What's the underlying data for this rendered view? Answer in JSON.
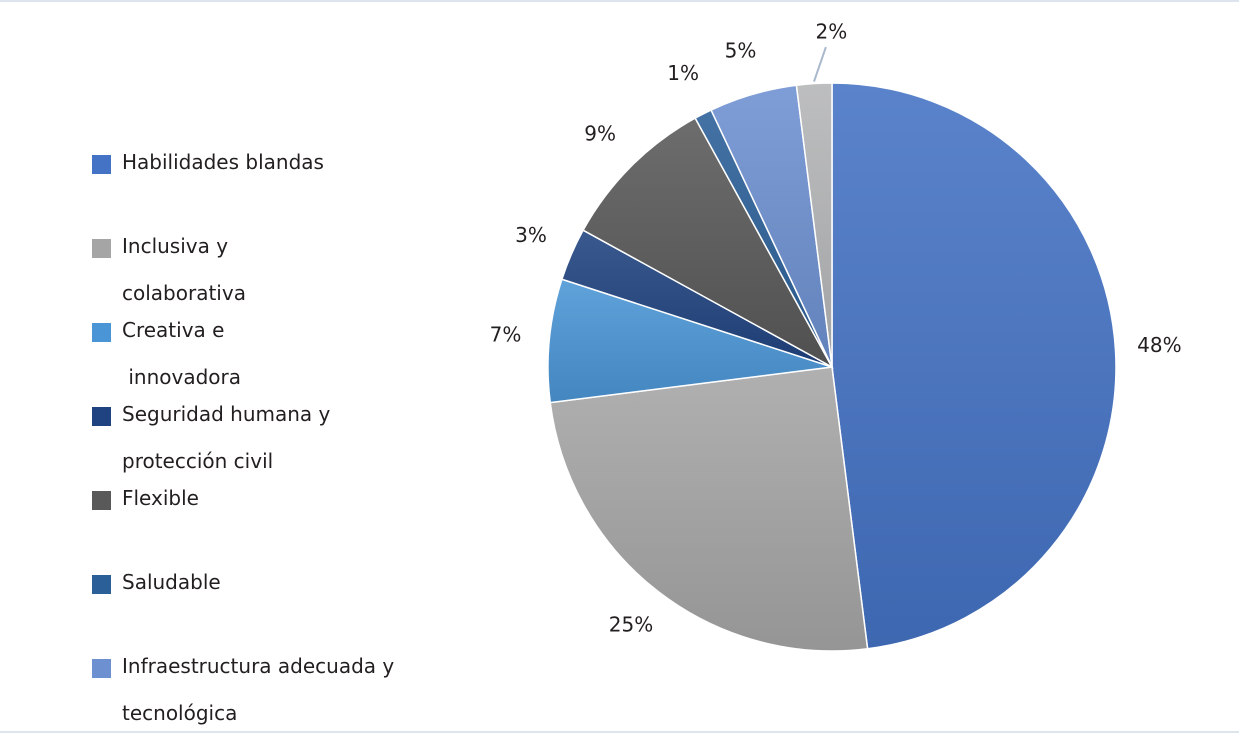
{
  "chart_data": {
    "type": "pie",
    "categories": [
      "Habilidades blandas",
      "Inclusiva y colaborativa",
      "Creativa e innovadora",
      "Seguridad humana y protección civil",
      "Flexible",
      "Saludable",
      "Infraestructura adecuada y tecnológica",
      ""
    ],
    "values": [
      48,
      25,
      7,
      3,
      9,
      1,
      5,
      2
    ],
    "data_labels": [
      "48%",
      "25%",
      "7%",
      "3%",
      "9%",
      "1%",
      "5%",
      "2%"
    ],
    "colors": [
      "#4472c4",
      "#a5a5a5",
      "#4a95d5",
      "#1f4380",
      "#595959",
      "#2b5f98",
      "#6d90d0",
      "#b4b5b6"
    ],
    "legend_placement": "left"
  },
  "legend": {
    "items": [
      {
        "lines": [
          "Habilidades blandas"
        ],
        "color": "#4472c4"
      },
      {
        "lines": [
          "Inclusiva y",
          "colaborativa"
        ],
        "color": "#a5a5a5"
      },
      {
        "lines": [
          "Creativa e",
          " innovadora"
        ],
        "color": "#4a95d5"
      },
      {
        "lines": [
          "Seguridad humana y",
          "protección civil"
        ],
        "color": "#1f4380"
      },
      {
        "lines": [
          "Flexible"
        ],
        "color": "#595959"
      },
      {
        "lines": [
          "Saludable"
        ],
        "color": "#2b5f98"
      },
      {
        "lines": [
          "Infraestructura adecuada y",
          "tecnológica"
        ],
        "color": "#6d90d0"
      }
    ]
  }
}
